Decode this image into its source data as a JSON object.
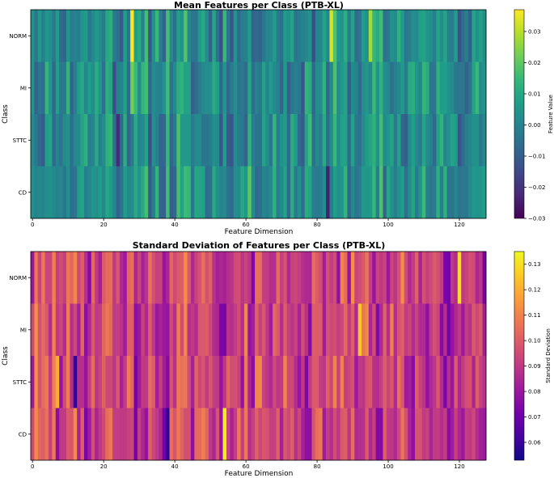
{
  "chart_data": [
    {
      "type": "heatmap",
      "title": "Mean Features per Class (PTB-XL)",
      "xlabel": "Feature Dimension",
      "ylabel": "Class",
      "rows": [
        "NORM",
        "MI",
        "STTC",
        "CD"
      ],
      "n_columns": 128,
      "xticks": [
        0,
        20,
        40,
        60,
        80,
        100,
        120
      ],
      "colormap": "viridis",
      "colorbar": {
        "label": "Feature Value",
        "vmin": -0.03,
        "vmax": 0.037,
        "ticks": [
          -0.03,
          -0.02,
          -0.01,
          0.0,
          0.01,
          0.02,
          0.03
        ],
        "tick_labels": [
          "−0.03",
          "−0.02",
          "−0.01",
          "0.00",
          "0.01",
          "0.02",
          "0.03"
        ]
      },
      "notable_values": [
        {
          "row": "NORM",
          "column": 28,
          "value": 0.037
        },
        {
          "row": "NORM",
          "column": 84,
          "value": 0.033
        },
        {
          "row": "NORM",
          "column": 95,
          "value": 0.028
        },
        {
          "row": "MI",
          "column": 28,
          "value": 0.022
        },
        {
          "row": "STTC",
          "column": 24,
          "value": -0.022
        },
        {
          "row": "CD",
          "column": 83,
          "value": -0.024
        }
      ],
      "typical_range": [
        -0.015,
        0.02
      ]
    },
    {
      "type": "heatmap",
      "title": "Standard Deviation of Features per Class (PTB-XL)",
      "xlabel": "Feature Dimension",
      "ylabel": "Class",
      "rows": [
        "NORM",
        "MI",
        "STTC",
        "CD"
      ],
      "n_columns": 128,
      "xticks": [
        0,
        20,
        40,
        60,
        80,
        100,
        120
      ],
      "colormap": "plasma",
      "colorbar": {
        "label": "Standard Deviation",
        "vmin": 0.053,
        "vmax": 0.135,
        "ticks": [
          0.06,
          0.07,
          0.08,
          0.09,
          0.1,
          0.11,
          0.12,
          0.13
        ],
        "tick_labels": [
          "0.06",
          "0.07",
          "0.08",
          "0.09",
          "0.10",
          "0.11",
          "0.12",
          "0.13"
        ]
      },
      "notable_values": [
        {
          "row": "CD",
          "column": 54,
          "value": 0.133
        },
        {
          "row": "NORM",
          "column": 120,
          "value": 0.13
        },
        {
          "row": "MI",
          "column": 92,
          "value": 0.125
        },
        {
          "row": "STTC",
          "column": 7,
          "value": 0.12
        },
        {
          "row": "STTC",
          "column": 12,
          "value": 0.058
        },
        {
          "row": "CD",
          "column": 38,
          "value": 0.058
        }
      ],
      "typical_range": [
        0.07,
        0.115
      ]
    }
  ]
}
